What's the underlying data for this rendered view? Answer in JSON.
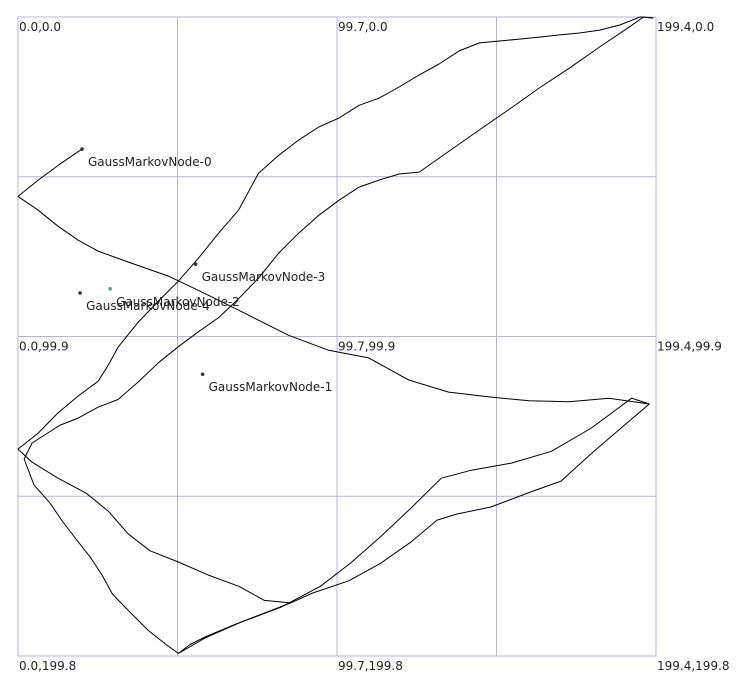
{
  "plot": {
    "x_range": [
      0.0,
      199.4
    ],
    "y_range": [
      0.0,
      199.8
    ],
    "grid_color": "#b4b4dc",
    "path_color": "#000000"
  },
  "corner_labels": [
    {
      "id": "tl",
      "text": "0.0,0.0",
      "x": 0.0,
      "y": 0.0
    },
    {
      "id": "tm",
      "text": "99.7,0.0",
      "x": 99.7,
      "y": 0.0
    },
    {
      "id": "tr",
      "text": "199.4,0.0",
      "x": 199.4,
      "y": 0.0
    },
    {
      "id": "ml",
      "text": "0.0,99.9",
      "x": 0.0,
      "y": 99.9
    },
    {
      "id": "mm",
      "text": "99.7,99.9",
      "x": 99.7,
      "y": 99.9
    },
    {
      "id": "mr",
      "text": "199.4,99.9",
      "x": 199.4,
      "y": 99.9
    },
    {
      "id": "bl",
      "text": "0.0,199.8",
      "x": 0.0,
      "y": 199.8
    },
    {
      "id": "bm",
      "text": "99.7,199.8",
      "x": 99.7,
      "y": 199.8
    },
    {
      "id": "br",
      "text": "199.4,199.8",
      "x": 199.4,
      "y": 199.8
    }
  ],
  "nodes": [
    {
      "id": "node-0",
      "label": "GaussMarkovNode-0",
      "x": 20.0,
      "y": 41.3,
      "color": "#333333"
    },
    {
      "id": "node-1",
      "label": "GaussMarkovNode-1",
      "x": 57.7,
      "y": 111.7,
      "color": "#333333"
    },
    {
      "id": "node-2",
      "label": "GaussMarkovNode-2",
      "x": 28.8,
      "y": 85.0,
      "color": "#5a9e9e"
    },
    {
      "id": "node-3",
      "label": "GaussMarkovNode-3",
      "x": 55.5,
      "y": 77.3,
      "color": "#333333"
    },
    {
      "id": "node-4",
      "label": "GaussMarkovNode-4",
      "x": 19.4,
      "y": 86.3,
      "color": "#333333"
    }
  ],
  "paths": [
    {
      "id": "trajectory-a",
      "points": [
        [
          20.0,
          41.3
        ],
        [
          13.1,
          46.0
        ],
        [
          6.3,
          51.0
        ],
        [
          0.0,
          56.1
        ],
        [
          6.3,
          60.4
        ],
        [
          12.5,
          65.4
        ],
        [
          18.8,
          69.8
        ],
        [
          25.0,
          73.2
        ],
        [
          34.4,
          76.6
        ],
        [
          47.0,
          81.0
        ],
        [
          59.5,
          87.0
        ],
        [
          72.0,
          93.2
        ],
        [
          84.5,
          99.5
        ],
        [
          97.1,
          104.2
        ],
        [
          109.6,
          106.6
        ],
        [
          122.1,
          113.5
        ],
        [
          134.6,
          117.3
        ],
        [
          147.2,
          118.8
        ],
        [
          159.7,
          120.0
        ],
        [
          172.2,
          120.3
        ],
        [
          184.7,
          119.2
        ],
        [
          197.3,
          121.0
        ],
        [
          188.5,
          128.5
        ],
        [
          179.1,
          136.6
        ],
        [
          169.7,
          145.1
        ],
        [
          160.3,
          148.5
        ],
        [
          147.8,
          153.2
        ],
        [
          137.2,
          155.4
        ],
        [
          131.0,
          157.3
        ],
        [
          122.9,
          164.1
        ],
        [
          113.5,
          170.7
        ],
        [
          103.4,
          176.3
        ],
        [
          92.1,
          180.1
        ],
        [
          85.2,
          183.2
        ],
        [
          76.4,
          186.6
        ],
        [
          67.6,
          190.0
        ],
        [
          58.8,
          193.7
        ],
        [
          53.8,
          196.2
        ],
        [
          50.1,
          199.0
        ],
        [
          46.3,
          196.2
        ],
        [
          40.7,
          191.8
        ],
        [
          35.1,
          186.2
        ],
        [
          29.5,
          180.4
        ],
        [
          26.3,
          174.5
        ],
        [
          22.6,
          168.9
        ],
        [
          18.2,
          163.3
        ],
        [
          13.8,
          157.6
        ],
        [
          10.0,
          152.0
        ],
        [
          5.0,
          146.3
        ],
        [
          1.9,
          138.2
        ],
        [
          4.4,
          133.2
        ],
        [
          8.8,
          130.4
        ],
        [
          13.2,
          127.6
        ],
        [
          18.8,
          125.4
        ],
        [
          25.0,
          122.0
        ],
        [
          31.3,
          119.6
        ],
        [
          37.6,
          114.1
        ],
        [
          43.9,
          108.1
        ],
        [
          50.1,
          103.1
        ],
        [
          56.4,
          98.4
        ],
        [
          62.7,
          94.0
        ],
        [
          68.9,
          88.1
        ],
        [
          75.2,
          81.6
        ],
        [
          81.5,
          73.8
        ],
        [
          87.7,
          67.6
        ],
        [
          94.0,
          62.0
        ],
        [
          100.3,
          57.3
        ],
        [
          106.6,
          53.2
        ],
        [
          112.8,
          51.0
        ],
        [
          119.1,
          49.1
        ],
        [
          125.4,
          48.5
        ],
        [
          134.8,
          41.9
        ],
        [
          144.2,
          35.3
        ],
        [
          153.6,
          28.8
        ],
        [
          162.9,
          22.2
        ],
        [
          172.3,
          16.0
        ],
        [
          181.7,
          9.4
        ],
        [
          191.1,
          3.1
        ],
        [
          195.5,
          0.0
        ],
        [
          198.6,
          0.3
        ]
      ]
    },
    {
      "id": "trajectory-b",
      "points": [
        [
          50.1,
          199.0
        ],
        [
          58.8,
          194.0
        ],
        [
          69.5,
          189.3
        ],
        [
          82.0,
          184.6
        ],
        [
          94.5,
          178.0
        ],
        [
          104.0,
          170.7
        ],
        [
          113.5,
          162.3
        ],
        [
          122.9,
          153.5
        ],
        [
          132.3,
          144.2
        ],
        [
          141.7,
          141.7
        ],
        [
          154.2,
          139.5
        ],
        [
          166.7,
          135.8
        ],
        [
          179.2,
          128.5
        ],
        [
          191.8,
          119.2
        ],
        [
          197.3,
          121.0
        ]
      ]
    },
    {
      "id": "trajectory-c",
      "points": [
        [
          0.0,
          135.1
        ],
        [
          6.3,
          130.1
        ],
        [
          12.5,
          123.8
        ],
        [
          18.8,
          118.5
        ],
        [
          25.0,
          113.9
        ],
        [
          28.2,
          108.9
        ],
        [
          31.3,
          103.2
        ],
        [
          37.6,
          95.4
        ],
        [
          43.9,
          88.8
        ],
        [
          50.1,
          82.6
        ],
        [
          56.4,
          75.4
        ],
        [
          62.7,
          67.6
        ],
        [
          68.9,
          60.4
        ],
        [
          75.2,
          48.8
        ],
        [
          81.5,
          43.2
        ],
        [
          87.7,
          38.5
        ],
        [
          94.0,
          34.4
        ],
        [
          100.3,
          31.6
        ],
        [
          106.6,
          27.6
        ],
        [
          112.8,
          25.4
        ],
        [
          119.1,
          21.9
        ],
        [
          125.4,
          18.1
        ],
        [
          131.6,
          14.7
        ],
        [
          137.9,
          10.6
        ],
        [
          144.2,
          8.1
        ],
        [
          150.5,
          7.5
        ],
        [
          156.7,
          6.9
        ],
        [
          163.0,
          6.3
        ],
        [
          169.3,
          5.6
        ],
        [
          175.5,
          5.0
        ],
        [
          181.8,
          4.1
        ],
        [
          188.1,
          2.5
        ],
        [
          194.4,
          0.0
        ],
        [
          198.6,
          0.3
        ]
      ]
    },
    {
      "id": "trajectory-d",
      "points": [
        [
          0.0,
          135.1
        ],
        [
          4.4,
          139.2
        ],
        [
          12.5,
          144.2
        ],
        [
          21.3,
          148.9
        ],
        [
          28.2,
          154.5
        ],
        [
          34.4,
          161.6
        ],
        [
          41.3,
          166.9
        ],
        [
          50.1,
          170.4
        ],
        [
          59.5,
          174.5
        ],
        [
          69.0,
          178.0
        ],
        [
          77.0,
          182.4
        ],
        [
          85.2,
          183.2
        ]
      ]
    }
  ]
}
